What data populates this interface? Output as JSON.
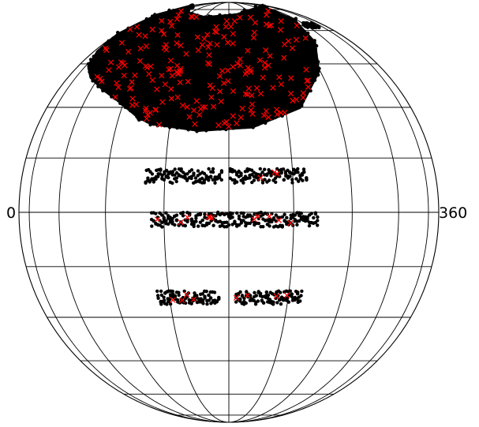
{
  "chart_data": {
    "type": "scatter",
    "projection": "orthographic-globe",
    "title": "",
    "xlabel": "",
    "ylabel": "",
    "xlim": [
      0,
      360
    ],
    "ylim": [
      -90,
      90
    ],
    "grid": true,
    "meridian_step_deg": 18,
    "parallel_step_deg": 15,
    "tick_labels": [
      {
        "text": "0",
        "side": "left"
      },
      {
        "text": "360",
        "side": "right"
      }
    ],
    "colors": {
      "background": "#ffffff",
      "grid": "#000000",
      "dense_points": "#000000",
      "cross_markers": "#ff0000"
    },
    "series": [
      {
        "marker": "circle",
        "color": "#000000",
        "regions": [
          {
            "kind": "blob",
            "polygon_lonlat": [
              [
                151,
                27
              ],
              [
                142,
                32
              ],
              [
                132,
                36
              ],
              [
                121,
                40
              ],
              [
                112,
                44
              ],
              [
                104,
                50
              ],
              [
                96,
                58
              ],
              [
                96,
                70
              ],
              [
                99,
                80
              ],
              [
                118,
                78
              ],
              [
                140,
                72
              ],
              [
                162,
                68
              ],
              [
                186,
                70
              ],
              [
                212,
                76
              ],
              [
                231,
                78
              ],
              [
                230,
                66
              ],
              [
                224,
                54
              ],
              [
                215,
                42
              ],
              [
                203,
                30
              ],
              [
                187,
                24
              ],
              [
                171,
                23
              ],
              [
                156,
                25
              ]
            ]
          },
          {
            "kind": "band",
            "lon_range": [
              0,
              22
            ],
            "lat": -2,
            "lat_width": 2
          },
          {
            "kind": "band",
            "lon_range": [
              335,
              360
            ],
            "lat": -2,
            "lat_width": 2
          },
          {
            "kind": "band",
            "lon_range": [
              2,
              24
            ],
            "lat": 10,
            "lat_width": 2
          },
          {
            "kind": "band",
            "lon_range": [
              338,
              360
            ],
            "lat": 10,
            "lat_width": 2
          },
          {
            "kind": "band",
            "lon_range": [
              3,
              22
            ],
            "lat": -24,
            "lat_width": 2
          },
          {
            "kind": "band",
            "lon_range": [
              338,
              358
            ],
            "lat": -24,
            "lat_width": 2
          },
          {
            "kind": "band",
            "lon_range": [
              232,
              246
            ],
            "lat": 63,
            "lat_width": 1.5
          }
        ]
      },
      {
        "marker": "x",
        "color": "#ff0000",
        "regions": [
          {
            "kind": "cross-scatter",
            "count": 200,
            "in_blob": true
          },
          {
            "kind": "band-crosses",
            "lon_range": [
              2,
              20
            ],
            "lat": -2,
            "count": 6
          },
          {
            "kind": "band-crosses",
            "lon_range": [
              340,
              358
            ],
            "lat": -2,
            "count": 5
          },
          {
            "kind": "band-crosses",
            "lon_range": [
              2,
              18
            ],
            "lat": -24,
            "count": 4
          },
          {
            "kind": "band-crosses",
            "lon_range": [
              340,
              358
            ],
            "lat": -24,
            "count": 4
          },
          {
            "kind": "band-crosses",
            "lon_range": [
              340,
              352
            ],
            "lat": 10,
            "count": 3
          }
        ]
      }
    ]
  }
}
